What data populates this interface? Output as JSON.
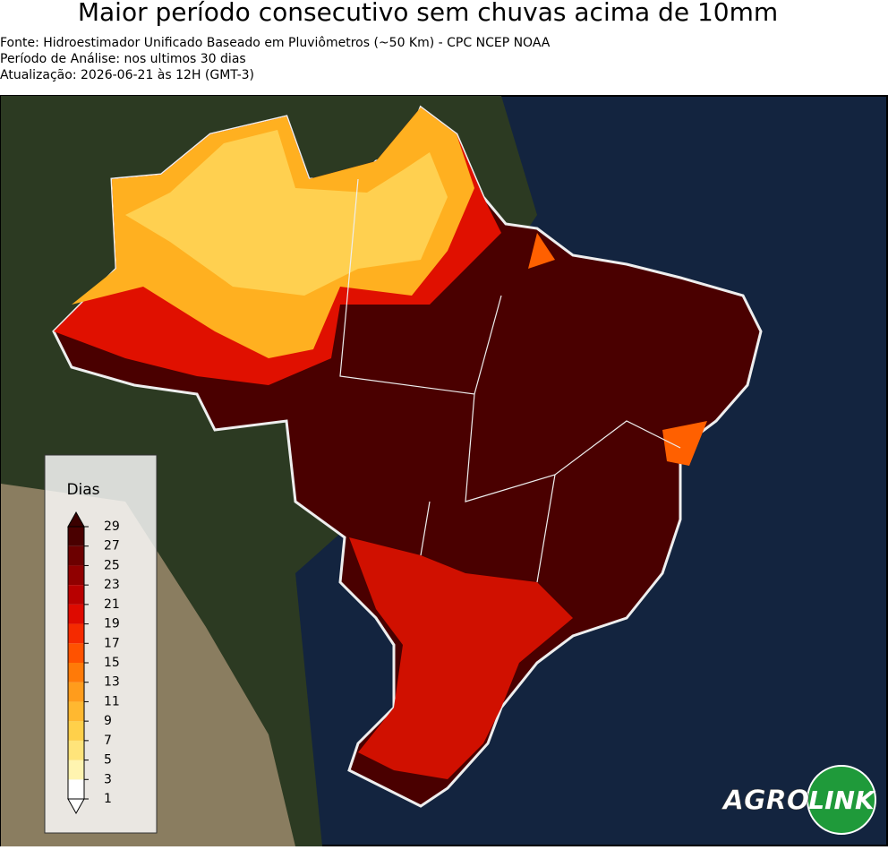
{
  "header": {
    "title": "Maior período consecutivo sem chuvas acima de 10mm",
    "lines": [
      "Fonte: Hidroestimador Unificado Baseado em Pluviômetros (~50 Km) - CPC NCEP NOAA",
      "Período de Análise: nos ultimos 30 dias",
      "Atualização: 2026-06-21 às 12H (GMT-3)"
    ]
  },
  "legend": {
    "title": "Dias",
    "ticks": [
      1,
      3,
      5,
      7,
      9,
      11,
      13,
      15,
      17,
      19,
      21,
      23,
      25,
      27,
      29
    ],
    "colors": [
      "#ffffff",
      "#fff4b0",
      "#ffe47a",
      "#ffd04a",
      "#ffb830",
      "#ff9c1c",
      "#ff7a08",
      "#ff5200",
      "#f52a00",
      "#de0a00",
      "#b80000",
      "#900000",
      "#6c0000",
      "#4a0000"
    ],
    "under_color": "#ffffff",
    "over_color": "#3a0000"
  },
  "logo": {
    "parts": [
      "AGRO",
      "LINK"
    ]
  }
}
